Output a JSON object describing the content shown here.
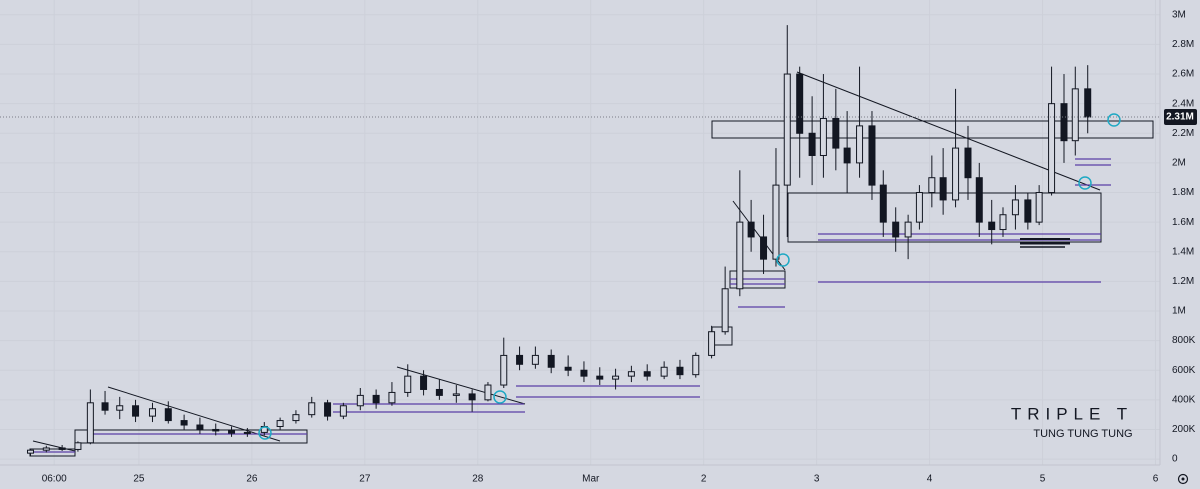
{
  "chart_data": {
    "type": "candlestick",
    "x": [
      -0.96,
      -0.82,
      -0.68,
      -0.54,
      -0.43,
      -0.3,
      -0.17,
      -0.03,
      0.12,
      0.26,
      0.4,
      0.54,
      0.68,
      0.82,
      0.96,
      1.11,
      1.25,
      1.39,
      1.53,
      1.67,
      1.81,
      1.96,
      2.1,
      2.24,
      2.38,
      2.52,
      2.66,
      2.81,
      2.95,
      3.09,
      3.23,
      3.37,
      3.51,
      3.65,
      3.8,
      3.94,
      4.08,
      4.22,
      4.36,
      4.5,
      4.65,
      4.79,
      4.93,
      5.07,
      5.19,
      5.32,
      5.42,
      5.53,
      5.64,
      5.74,
      5.85,
      5.96,
      6.06,
      6.17,
      6.27,
      6.38,
      6.49,
      6.59,
      6.7,
      6.81,
      6.91,
      7.02,
      7.12,
      7.23,
      7.34,
      7.44,
      7.55,
      7.65,
      7.76,
      7.87,
      7.97,
      8.08,
      8.19,
      8.29,
      8.4
    ],
    "open": [
      40000,
      60000,
      75000,
      65000,
      110000,
      380000,
      330000,
      360000,
      290000,
      340000,
      260000,
      230000,
      200000,
      190000,
      175000,
      180000,
      220000,
      260000,
      300000,
      380000,
      290000,
      360000,
      430000,
      380000,
      450000,
      560000,
      470000,
      430000,
      440000,
      400000,
      500000,
      700000,
      640000,
      700000,
      620000,
      600000,
      560000,
      540000,
      560000,
      590000,
      560000,
      620000,
      570000,
      700000,
      860000,
      1150000,
      1600000,
      1500000,
      1350000,
      1850000,
      2600000,
      2200000,
      2050000,
      2300000,
      2100000,
      2000000,
      2250000,
      1850000,
      1600000,
      1500000,
      1600000,
      1800000,
      1900000,
      1750000,
      2100000,
      1900000,
      1600000,
      1550000,
      1650000,
      1750000,
      1600000,
      1800000,
      2400000,
      2150000,
      2500000
    ],
    "high": [
      70000,
      90000,
      95000,
      120000,
      470000,
      460000,
      420000,
      400000,
      380000,
      390000,
      300000,
      280000,
      240000,
      220000,
      210000,
      250000,
      280000,
      330000,
      420000,
      400000,
      380000,
      480000,
      470000,
      520000,
      640000,
      600000,
      540000,
      500000,
      470000,
      520000,
      820000,
      760000,
      760000,
      740000,
      700000,
      660000,
      620000,
      610000,
      630000,
      640000,
      660000,
      670000,
      720000,
      900000,
      1300000,
      1950000,
      1750000,
      1650000,
      2100000,
      2930000,
      2650000,
      2450000,
      2600000,
      2500000,
      2350000,
      2650000,
      2350000,
      1950000,
      1700000,
      1650000,
      1850000,
      2050000,
      2100000,
      2500000,
      2250000,
      2000000,
      1750000,
      1700000,
      1850000,
      1800000,
      1850000,
      2650000,
      2600000,
      2650000,
      2660000
    ],
    "low": [
      20000,
      45000,
      55000,
      50000,
      100000,
      300000,
      270000,
      250000,
      250000,
      240000,
      200000,
      170000,
      160000,
      150000,
      150000,
      160000,
      200000,
      240000,
      280000,
      260000,
      270000,
      330000,
      340000,
      360000,
      420000,
      430000,
      400000,
      380000,
      320000,
      390000,
      480000,
      600000,
      610000,
      580000,
      560000,
      520000,
      500000,
      470000,
      520000,
      530000,
      540000,
      540000,
      550000,
      680000,
      840000,
      1100000,
      1400000,
      1250000,
      1300000,
      1500000,
      1900000,
      1850000,
      1900000,
      1950000,
      1800000,
      1900000,
      1750000,
      1500000,
      1400000,
      1350000,
      1550000,
      1700000,
      1650000,
      1700000,
      1750000,
      1500000,
      1450000,
      1500000,
      1550000,
      1550000,
      1580000,
      1780000,
      2000000,
      2050000,
      2200000
    ],
    "close": [
      60000,
      75000,
      65000,
      110000,
      380000,
      330000,
      360000,
      290000,
      340000,
      260000,
      230000,
      200000,
      190000,
      175000,
      180000,
      220000,
      260000,
      300000,
      380000,
      290000,
      360000,
      430000,
      380000,
      450000,
      560000,
      470000,
      430000,
      440000,
      400000,
      500000,
      700000,
      640000,
      700000,
      620000,
      600000,
      560000,
      540000,
      560000,
      590000,
      560000,
      620000,
      570000,
      700000,
      860000,
      1150000,
      1600000,
      1500000,
      1350000,
      1850000,
      2600000,
      2200000,
      2050000,
      2300000,
      2100000,
      2000000,
      2250000,
      1850000,
      1600000,
      1500000,
      1600000,
      1800000,
      1900000,
      1750000,
      2100000,
      1900000,
      1600000,
      1550000,
      1650000,
      1750000,
      1600000,
      1800000,
      2400000,
      2150000,
      2500000,
      2310000
    ],
    "color": "#131722",
    "xlim": [
      -1.23,
      9.04
    ],
    "xticks": [
      {
        "value": -0.75,
        "label": "06:00"
      },
      {
        "value": 0,
        "label": "25"
      },
      {
        "value": 1,
        "label": "26"
      },
      {
        "value": 2,
        "label": "27"
      },
      {
        "value": 3,
        "label": "28"
      },
      {
        "value": 4,
        "label": "Mar"
      },
      {
        "value": 5,
        "label": "2"
      },
      {
        "value": 6,
        "label": "3"
      },
      {
        "value": 7,
        "label": "4"
      },
      {
        "value": 8,
        "label": "5"
      },
      {
        "value": 9,
        "label": "6"
      }
    ],
    "ylim": [
      -40000,
      3100000
    ],
    "yticks": [
      0,
      {
        "value": 200000,
        "label": "200K"
      },
      {
        "value": 400000,
        "label": "400K"
      },
      {
        "value": 600000,
        "label": "600K"
      },
      {
        "value": 800000,
        "label": "800K"
      },
      {
        "value": 1000000,
        "label": "1M"
      },
      {
        "value": 1200000,
        "label": "1.2M"
      },
      {
        "value": 1400000,
        "label": "1.4M"
      },
      {
        "value": 1600000,
        "label": "1.6M"
      },
      {
        "value": 1800000,
        "label": "1.8M"
      },
      {
        "value": 2000000,
        "label": "2M"
      },
      {
        "value": 2200000,
        "label": "2.2M"
      },
      {
        "value": 2400000,
        "label": "2.4M"
      },
      {
        "value": 2600000,
        "label": "2.6M"
      },
      {
        "value": 2800000,
        "label": "2.8M"
      },
      {
        "value": 3000000,
        "label": "3M"
      }
    ],
    "last_price": {
      "value": 2310000,
      "label": "2.31M"
    },
    "grid": true,
    "watermark": "TRIPLE T",
    "subtitle": "TUNG TUNG TUNG"
  }
}
